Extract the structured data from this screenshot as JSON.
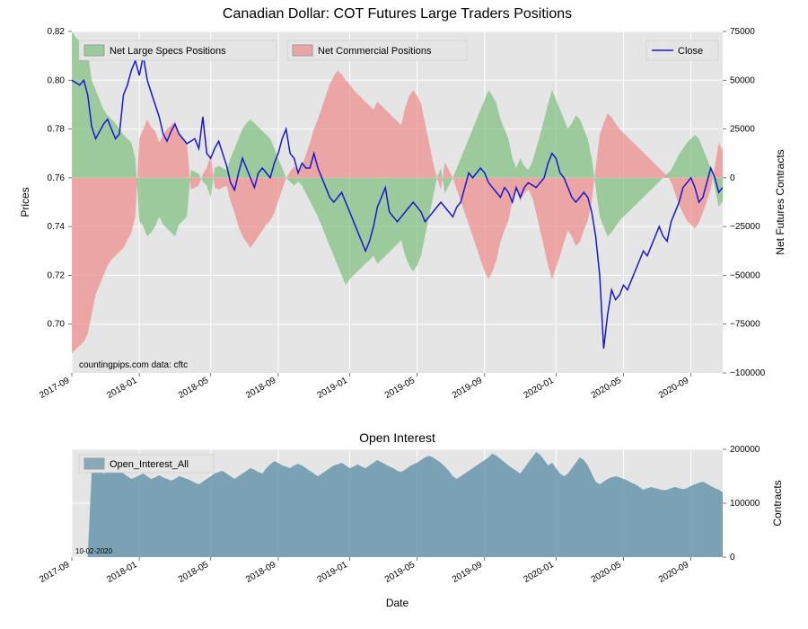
{
  "main_chart": {
    "title": "Canadian Dollar: COT Futures Large Traders Positions",
    "plot_bg": "#e5e5e5",
    "grid_color": "#ffffff",
    "left_axis": {
      "label": "Prices",
      "min": 0.68,
      "max": 0.82,
      "ticks": [
        0.7,
        0.72,
        0.74,
        0.76,
        0.78,
        0.8,
        0.82
      ]
    },
    "right_axis": {
      "label": "Net Futures Contracts",
      "min": -100000,
      "max": 75000,
      "ticks": [
        -100000,
        -75000,
        -50000,
        -25000,
        0,
        25000,
        50000,
        75000
      ]
    },
    "x_axis": {
      "min": 0,
      "max": 164,
      "ticks": [
        0,
        17,
        35,
        52,
        70,
        87,
        104,
        122,
        139,
        156
      ],
      "labels": [
        "2017-09",
        "2018-01",
        "2018-05",
        "2018-09",
        "2019-01",
        "2019-05",
        "2019-09",
        "2020-01",
        "2020-05",
        "2020-09"
      ]
    },
    "legend": {
      "items": [
        {
          "label": "Net Large Specs Positions",
          "color": "#7fbf7f",
          "type": "fill"
        },
        {
          "label": "Net Commercial Positions",
          "color": "#ef8a8a",
          "type": "fill"
        },
        {
          "label": "Close",
          "color": "#1818d0",
          "type": "line"
        }
      ]
    },
    "credit": "countingpips.com     data: cftc",
    "series": {
      "specs_color": "#7fbf7f",
      "specs_opacity": 0.7,
      "comm_color": "#ef8a8a",
      "comm_opacity": 0.7,
      "close_color": "#1818d0",
      "close_width": 1.5,
      "specs": [
        75000,
        72000,
        70000,
        68000,
        65000,
        50000,
        45000,
        40000,
        35000,
        32000,
        30000,
        28000,
        25000,
        22000,
        20000,
        18000,
        10000,
        -22000,
        -25000,
        -30000,
        -28000,
        -25000,
        -20000,
        -24000,
        -26000,
        -28000,
        -30000,
        -24000,
        -22000,
        -20000,
        4000,
        3000,
        2000,
        -2000,
        -4000,
        -10000,
        5000,
        6000,
        5000,
        4000,
        10000,
        15000,
        20000,
        25000,
        28000,
        30000,
        28000,
        26000,
        24000,
        22000,
        20000,
        15000,
        10000,
        5000,
        0,
        -2000,
        -4000,
        -2000,
        -4000,
        -8000,
        -12000,
        -16000,
        -20000,
        -25000,
        -30000,
        -35000,
        -40000,
        -45000,
        -50000,
        -55000,
        -52000,
        -50000,
        -48000,
        -46000,
        -44000,
        -42000,
        -40000,
        -44000,
        -42000,
        -40000,
        -38000,
        -36000,
        -34000,
        -32000,
        -40000,
        -45000,
        -48000,
        -45000,
        -40000,
        -30000,
        -20000,
        -10000,
        0,
        5000,
        -8000,
        -4000,
        0,
        5000,
        10000,
        15000,
        20000,
        25000,
        30000,
        35000,
        40000,
        45000,
        42000,
        38000,
        30000,
        25000,
        20000,
        10000,
        5000,
        10000,
        6000,
        4000,
        8000,
        15000,
        22000,
        30000,
        38000,
        45000,
        40000,
        35000,
        30000,
        25000,
        28000,
        32000,
        30000,
        25000,
        20000,
        10000,
        -5000,
        -20000,
        -25000,
        -30000,
        -28000,
        -25000,
        -22000,
        -20000,
        -18000,
        -16000,
        -14000,
        -12000,
        -10000,
        -8000,
        -6000,
        -4000,
        -2000,
        0,
        2000,
        4000,
        8000,
        12000,
        15000,
        18000,
        20000,
        22000,
        20000,
        15000,
        10000,
        5000,
        -5000,
        -15000,
        -12000
      ],
      "commercial": [
        -90000,
        -88000,
        -86000,
        -84000,
        -80000,
        -70000,
        -60000,
        -55000,
        -50000,
        -45000,
        -42000,
        -40000,
        -38000,
        -36000,
        -32000,
        -28000,
        -20000,
        20000,
        25000,
        30000,
        26000,
        24000,
        18000,
        22000,
        25000,
        27000,
        29000,
        23000,
        20000,
        18000,
        -6000,
        -5000,
        -4000,
        2000,
        5000,
        12000,
        -5000,
        -6000,
        -5000,
        -4000,
        -12000,
        -18000,
        -25000,
        -30000,
        -33000,
        -36000,
        -33000,
        -30000,
        -27000,
        -24000,
        -22000,
        -18000,
        -12000,
        -6000,
        0,
        3000,
        6000,
        3000,
        6000,
        12000,
        18000,
        25000,
        30000,
        36000,
        42000,
        48000,
        52000,
        55000,
        53000,
        50000,
        48000,
        45000,
        43000,
        41000,
        39000,
        37000,
        35000,
        39000,
        37000,
        35000,
        33000,
        31000,
        29000,
        27000,
        36000,
        42000,
        45000,
        42000,
        38000,
        28000,
        18000,
        8000,
        0,
        -6000,
        8000,
        4000,
        0,
        -6000,
        -12000,
        -18000,
        -24000,
        -30000,
        -36000,
        -42000,
        -48000,
        -52000,
        -48000,
        -42000,
        -33000,
        -27000,
        -22000,
        -12000,
        -6000,
        -12000,
        -8000,
        -6000,
        -10000,
        -18000,
        -27000,
        -36000,
        -45000,
        -52000,
        -46000,
        -40000,
        -33000,
        -27000,
        -30000,
        -35000,
        -33000,
        -27000,
        -22000,
        -12000,
        5000,
        22000,
        28000,
        33000,
        31000,
        28000,
        25000,
        23000,
        21000,
        19000,
        17000,
        15000,
        13000,
        11000,
        9000,
        7000,
        5000,
        3000,
        1000,
        -2000,
        -8000,
        -14000,
        -18000,
        -22000,
        -24000,
        -26000,
        -23000,
        -18000,
        -12000,
        -6000,
        6000,
        18000,
        14000
      ],
      "close": [
        0.8,
        0.799,
        0.798,
        0.8,
        0.794,
        0.781,
        0.776,
        0.779,
        0.782,
        0.784,
        0.78,
        0.776,
        0.778,
        0.794,
        0.798,
        0.804,
        0.808,
        0.802,
        0.81,
        0.8,
        0.795,
        0.79,
        0.785,
        0.778,
        0.775,
        0.779,
        0.782,
        0.778,
        0.776,
        0.774,
        0.775,
        0.776,
        0.772,
        0.785,
        0.77,
        0.768,
        0.772,
        0.775,
        0.77,
        0.765,
        0.758,
        0.755,
        0.762,
        0.768,
        0.764,
        0.76,
        0.756,
        0.762,
        0.764,
        0.762,
        0.76,
        0.766,
        0.77,
        0.776,
        0.78,
        0.77,
        0.768,
        0.762,
        0.766,
        0.764,
        0.764,
        0.77,
        0.764,
        0.76,
        0.756,
        0.752,
        0.75,
        0.752,
        0.754,
        0.75,
        0.746,
        0.742,
        0.738,
        0.734,
        0.73,
        0.734,
        0.74,
        0.748,
        0.752,
        0.756,
        0.746,
        0.744,
        0.742,
        0.744,
        0.746,
        0.748,
        0.75,
        0.748,
        0.746,
        0.742,
        0.744,
        0.746,
        0.748,
        0.75,
        0.748,
        0.746,
        0.744,
        0.748,
        0.75,
        0.756,
        0.762,
        0.76,
        0.762,
        0.764,
        0.762,
        0.758,
        0.756,
        0.754,
        0.752,
        0.756,
        0.754,
        0.75,
        0.756,
        0.752,
        0.756,
        0.758,
        0.757,
        0.756,
        0.758,
        0.76,
        0.766,
        0.77,
        0.768,
        0.762,
        0.76,
        0.756,
        0.752,
        0.75,
        0.752,
        0.754,
        0.752,
        0.746,
        0.736,
        0.72,
        0.69,
        0.704,
        0.714,
        0.71,
        0.712,
        0.716,
        0.714,
        0.718,
        0.722,
        0.726,
        0.73,
        0.728,
        0.732,
        0.736,
        0.74,
        0.736,
        0.734,
        0.742,
        0.746,
        0.75,
        0.756,
        0.758,
        0.76,
        0.756,
        0.75,
        0.752,
        0.758,
        0.764,
        0.76,
        0.754,
        0.756
      ]
    }
  },
  "oi_chart": {
    "title": "Open Interest",
    "plot_bg": "#e5e5e5",
    "series_color": "#5f91a8",
    "series_opacity": 0.8,
    "right_axis": {
      "label": "Contracts",
      "min": 0,
      "max": 200000,
      "ticks": [
        0,
        100000,
        200000
      ]
    },
    "x_axis_label": "Date",
    "legend": {
      "label": "Open_Interest_All"
    },
    "date_label": "10-02-2020",
    "data": [
      0,
      0,
      0,
      0,
      0,
      158000,
      160000,
      162000,
      155000,
      158000,
      162000,
      165000,
      160000,
      155000,
      150000,
      145000,
      148000,
      152000,
      155000,
      150000,
      145000,
      148000,
      152000,
      148000,
      145000,
      142000,
      145000,
      150000,
      148000,
      145000,
      142000,
      138000,
      135000,
      140000,
      145000,
      150000,
      155000,
      158000,
      160000,
      155000,
      150000,
      145000,
      150000,
      155000,
      160000,
      165000,
      162000,
      158000,
      155000,
      165000,
      172000,
      178000,
      175000,
      170000,
      168000,
      165000,
      170000,
      173000,
      170000,
      165000,
      160000,
      155000,
      150000,
      155000,
      160000,
      165000,
      170000,
      172000,
      175000,
      170000,
      165000,
      168000,
      172000,
      168000,
      165000,
      170000,
      175000,
      180000,
      176000,
      172000,
      168000,
      165000,
      160000,
      158000,
      162000,
      168000,
      172000,
      175000,
      180000,
      185000,
      188000,
      185000,
      180000,
      175000,
      168000,
      160000,
      150000,
      145000,
      150000,
      155000,
      160000,
      165000,
      170000,
      175000,
      180000,
      185000,
      192000,
      188000,
      182000,
      176000,
      170000,
      165000,
      160000,
      155000,
      165000,
      175000,
      185000,
      195000,
      190000,
      180000,
      170000,
      175000,
      165000,
      155000,
      150000,
      155000,
      165000,
      175000,
      185000,
      180000,
      170000,
      155000,
      140000,
      135000,
      140000,
      145000,
      148000,
      150000,
      148000,
      145000,
      142000,
      138000,
      135000,
      130000,
      125000,
      128000,
      130000,
      128000,
      126000,
      124000,
      125000,
      128000,
      130000,
      128000,
      126000,
      128000,
      132000,
      135000,
      138000,
      140000,
      136000,
      132000,
      128000,
      125000,
      120000
    ]
  }
}
